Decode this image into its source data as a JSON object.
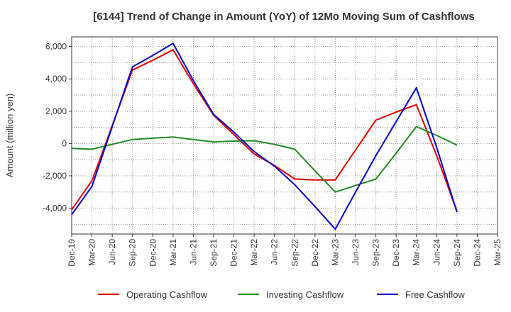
{
  "chart_data": {
    "type": "line",
    "title": "[6144]  Trend of Change in Amount (YoY) of 12Mo Moving Sum of Cashflows",
    "xlabel": "",
    "ylabel": "Amount (million yen)",
    "categories": [
      "Dec-19",
      "Mar-20",
      "Jun-20",
      "Sep-20",
      "Dec-20",
      "Mar-21",
      "Jun-21",
      "Sep-21",
      "Dec-21",
      "Mar-22",
      "Jun-22",
      "Sep-22",
      "Dec-22",
      "Mar-23",
      "Jun-23",
      "Sep-23",
      "Dec-23",
      "Mar-24",
      "Jun-24",
      "Sep-24",
      "Dec-24",
      "Mar-25"
    ],
    "ylim": [
      -5600,
      6600
    ],
    "yticks": [
      -4000,
      -2000,
      0,
      2000,
      4000,
      6000
    ],
    "ytick_labels": [
      "-4,000",
      "-2,000",
      "0",
      "2,000",
      "4,000",
      "6,000"
    ],
    "grid": true,
    "legend_position": "bottom",
    "series": [
      {
        "name": "Operating Cashflow",
        "color": "#e00000",
        "values": [
          -4100,
          -2300,
          1100,
          4550,
          5150,
          5800,
          3700,
          1750,
          550,
          -650,
          -1350,
          -2200,
          -2250,
          -2250,
          -400,
          1450,
          1950,
          2400,
          -750,
          -4200,
          null,
          null
        ]
      },
      {
        "name": "Investing Cashflow",
        "color": "#228b22",
        "values": [
          -300,
          -350,
          -50,
          250,
          330,
          400,
          250,
          100,
          150,
          170,
          -50,
          -350,
          -1700,
          -3000,
          -2600,
          -2200,
          -600,
          1050,
          500,
          -100,
          null,
          null
        ]
      },
      {
        "name": "Free Cashflow",
        "color": "#0000cc",
        "values": [
          -4400,
          -2650,
          1050,
          4750,
          5450,
          6200,
          3900,
          1800,
          700,
          -500,
          -1400,
          -2550,
          -3900,
          -5300,
          -3000,
          -750,
          1350,
          3450,
          -250,
          -4250,
          null,
          null
        ]
      }
    ]
  }
}
